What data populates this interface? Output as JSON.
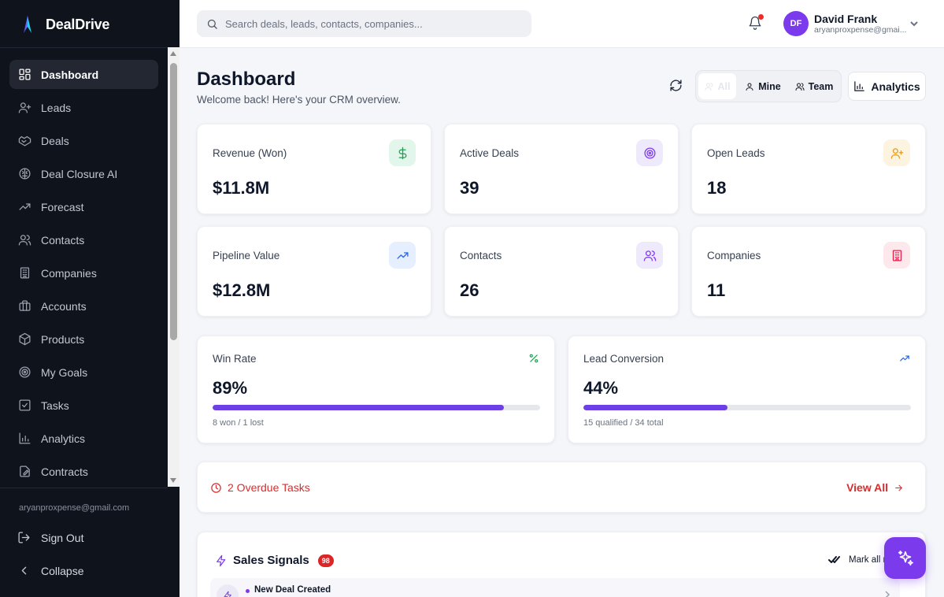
{
  "app": {
    "name": "DealDrive"
  },
  "sidebar": {
    "items": [
      {
        "label": "Dashboard",
        "icon": "dashboard-icon",
        "active": true
      },
      {
        "label": "Leads",
        "icon": "user-plus-icon"
      },
      {
        "label": "Deals",
        "icon": "handshake-icon"
      },
      {
        "label": "Deal Closure AI",
        "icon": "brain-icon"
      },
      {
        "label": "Forecast",
        "icon": "trending-up-icon"
      },
      {
        "label": "Contacts",
        "icon": "users-icon"
      },
      {
        "label": "Companies",
        "icon": "building-icon"
      },
      {
        "label": "Accounts",
        "icon": "briefcase-icon"
      },
      {
        "label": "Products",
        "icon": "package-icon"
      },
      {
        "label": "My Goals",
        "icon": "target-icon"
      },
      {
        "label": "Tasks",
        "icon": "checkbox-icon"
      },
      {
        "label": "Analytics",
        "icon": "bar-chart-icon"
      },
      {
        "label": "Contracts",
        "icon": "file-edit-icon"
      }
    ],
    "email": "aryanproxpense@gmail.com",
    "sign_out": "Sign Out",
    "collapse": "Collapse"
  },
  "header": {
    "search_placeholder": "Search deals, leads, contacts, companies...",
    "user": {
      "initials": "DF",
      "name": "David Frank",
      "email": "aryanproxpense@gmai..."
    }
  },
  "page": {
    "title": "Dashboard",
    "subtitle": "Welcome back! Here's your CRM overview.",
    "filters": [
      "All",
      "Mine",
      "Team"
    ],
    "active_filter": "All",
    "analytics_button": "Analytics"
  },
  "stats": [
    {
      "label": "Revenue (Won)",
      "value": "$11.8M",
      "icon": "dollar-icon",
      "color": "#16a34a",
      "bg": "#e3f6ec"
    },
    {
      "label": "Active Deals",
      "value": "39",
      "icon": "target-icon",
      "color": "#7c3aed",
      "bg": "#efe9fc"
    },
    {
      "label": "Open Leads",
      "value": "18",
      "icon": "user-plus-icon",
      "color": "#ea9a12",
      "bg": "#fdf3e1"
    },
    {
      "label": "Pipeline Value",
      "value": "$12.8M",
      "icon": "trending-up-icon",
      "color": "#2563eb",
      "bg": "#e6efff"
    },
    {
      "label": "Contacts",
      "value": "26",
      "icon": "users-icon",
      "color": "#7c3aed",
      "bg": "#efe9fc"
    },
    {
      "label": "Companies",
      "value": "11",
      "icon": "building-icon",
      "color": "#e11d48",
      "bg": "#fde8ec"
    }
  ],
  "progress": [
    {
      "label": "Win Rate",
      "value": "89%",
      "fraction": 0.89,
      "caption": "8 won / 1 lost",
      "icon": "percent-icon",
      "color": "#16a34a"
    },
    {
      "label": "Lead Conversion",
      "value": "44%",
      "fraction": 0.44,
      "caption": "15 qualified / 34 total",
      "icon": "trending-up-icon",
      "color": "#2563eb"
    }
  ],
  "overdue": {
    "text": "2 Overdue Tasks",
    "link": "View All"
  },
  "signals": {
    "title": "Sales Signals",
    "count": "98",
    "mark_all": "Mark all r",
    "items": [
      {
        "text": "New Deal Created"
      }
    ]
  },
  "colors": {
    "accent": "#7c3aed",
    "danger": "#d92d2d",
    "sidebar_bg": "#0f131c"
  }
}
